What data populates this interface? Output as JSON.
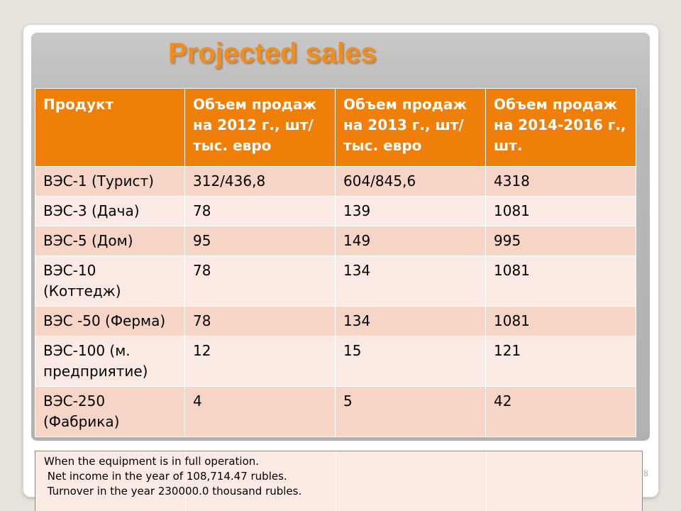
{
  "slide": {
    "title": "Projected sales",
    "page_number": "8"
  },
  "table": {
    "headers": [
      "Продукт",
      "Объем продаж на 2012 г., шт/тыс. евро",
      "Объем продаж на 2013 г., шт/тыс. евро",
      "Объем продаж на 2014-2016 г., шт."
    ],
    "rows": [
      [
        "ВЭС-1 (Турист)",
        "312/436,8",
        "604/845,6",
        "4318"
      ],
      [
        "ВЭС-3 (Дача)",
        "78",
        "139",
        "1081"
      ],
      [
        "ВЭС-5 (Дом)",
        "95",
        "149",
        "995"
      ],
      [
        "ВЭС-10 (Коттедж)",
        "78",
        "134",
        "1081"
      ],
      [
        "ВЭС -50 (Ферма)",
        "78",
        "134",
        "1081"
      ],
      [
        "ВЭС-100 (м. предприятие)",
        "12",
        "15",
        "121"
      ],
      [
        "ВЭС-250 (Фабрика)",
        "4",
        "5",
        "42"
      ]
    ]
  },
  "note": {
    "lines": [
      "When the equipment is in full operation.",
      " Net income in the year of 108,714.47 rubles.",
      " Turnover in the year 230000.0 thousand rubles."
    ]
  },
  "colors": {
    "header_fill": "#f07f09",
    "row_fill_dark": "#f6d4c6",
    "row_fill_light": "#fbeae4",
    "title_color": "#f48c1a"
  }
}
